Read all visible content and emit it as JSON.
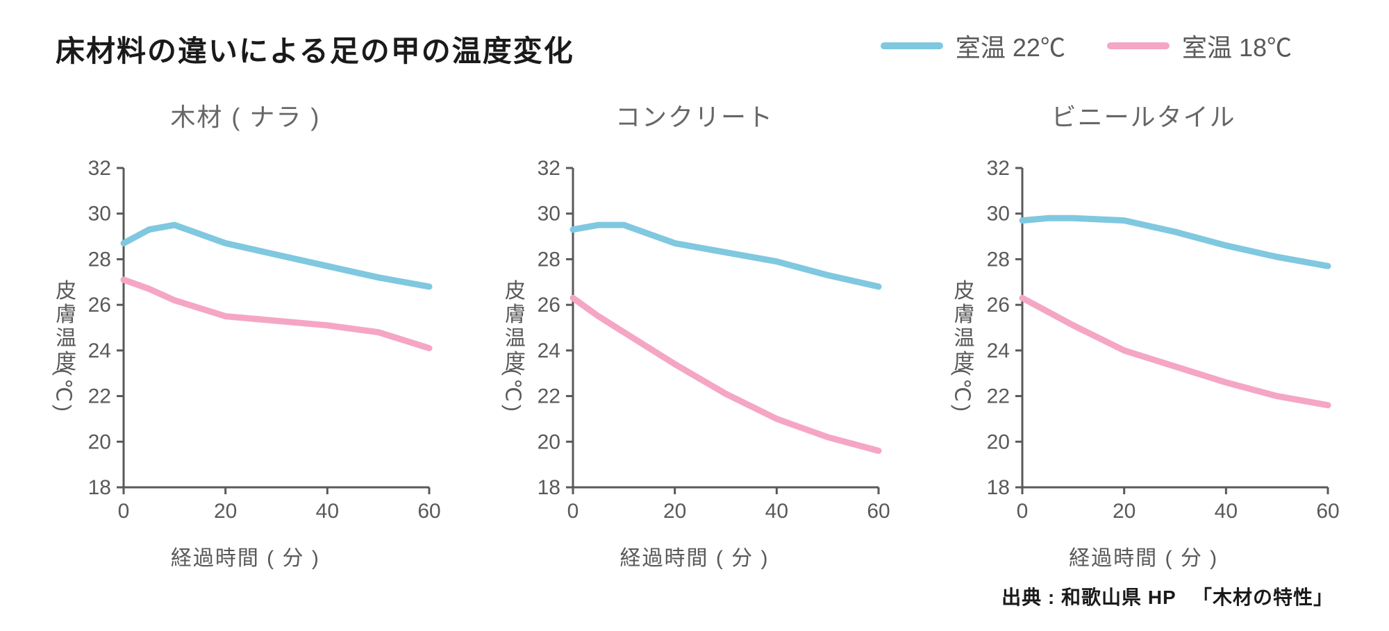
{
  "title": "床材料の違いによる足の甲の温度変化",
  "legend": {
    "series22": {
      "label": "室温 22℃",
      "color": "#7fc8e0"
    },
    "series18": {
      "label": "室温 18℃",
      "color": "#f5a6c4"
    }
  },
  "axes": {
    "ylabel": "皮膚温度",
    "yunit": "(℃)",
    "xlabel": "経過時間 ( 分 )",
    "ylim": [
      18,
      32
    ],
    "ytick_step": 2,
    "xlim": [
      0,
      60
    ],
    "xticks": [
      0,
      20,
      40,
      60
    ]
  },
  "styling": {
    "background_color": "#ffffff",
    "axis_color": "#595959",
    "tick_fontsize": 30,
    "title_fontsize": 42,
    "subtitle_fontsize": 36,
    "line_width": 9,
    "title_color": "#1a1a1a",
    "label_color": "#595959"
  },
  "panels": [
    {
      "title": "木材 ( ナラ )",
      "series22_x": [
        0,
        5,
        10,
        20,
        30,
        40,
        50,
        60
      ],
      "series22_y": [
        28.7,
        29.3,
        29.5,
        28.7,
        28.2,
        27.7,
        27.2,
        26.8
      ],
      "series18_x": [
        0,
        5,
        10,
        20,
        30,
        40,
        50,
        60
      ],
      "series18_y": [
        27.1,
        26.7,
        26.2,
        25.5,
        25.3,
        25.1,
        24.8,
        24.1
      ]
    },
    {
      "title": "コンクリート",
      "series22_x": [
        0,
        5,
        10,
        20,
        30,
        40,
        50,
        60
      ],
      "series22_y": [
        29.3,
        29.5,
        29.5,
        28.7,
        28.3,
        27.9,
        27.3,
        26.8
      ],
      "series18_x": [
        0,
        5,
        10,
        20,
        30,
        40,
        50,
        60
      ],
      "series18_y": [
        26.3,
        25.5,
        24.8,
        23.4,
        22.1,
        21.0,
        20.2,
        19.6
      ]
    },
    {
      "title": "ビニールタイル",
      "series22_x": [
        0,
        5,
        10,
        20,
        30,
        40,
        50,
        60
      ],
      "series22_y": [
        29.7,
        29.8,
        29.8,
        29.7,
        29.2,
        28.6,
        28.1,
        27.7
      ],
      "series18_x": [
        0,
        5,
        10,
        20,
        30,
        40,
        50,
        60
      ],
      "series18_y": [
        26.3,
        25.7,
        25.1,
        24.0,
        23.3,
        22.6,
        22.0,
        21.6
      ]
    }
  ],
  "source": "出典 : 和歌山県 HP 　「木材の特性」"
}
